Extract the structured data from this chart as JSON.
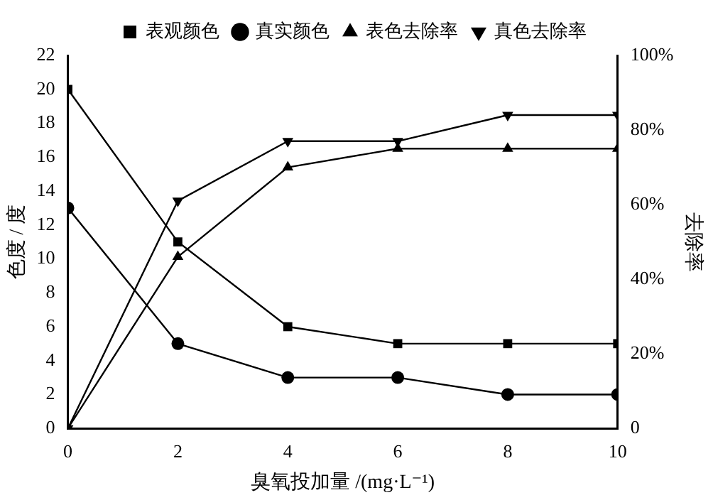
{
  "chart_data": {
    "type": "line",
    "xlabel": "臭氧投加量 /(mg·L⁻¹)",
    "ylabel": "色度 / 度",
    "y2label": "去除率",
    "x": [
      0,
      2,
      4,
      6,
      8,
      10
    ],
    "series": [
      {
        "name": "表观颜色",
        "color": "#000000",
        "marker": "square",
        "values": [
          20,
          11,
          6,
          5,
          5,
          5
        ]
      },
      {
        "name": "真实颜色",
        "color": "#000000",
        "marker": "circle",
        "values": [
          13,
          5,
          3,
          3,
          2,
          2
        ]
      },
      {
        "name": "表色去除率",
        "color": "#000000",
        "marker": "triangle",
        "axis": "y2",
        "values": [
          0,
          46,
          70,
          75,
          75,
          75
        ]
      },
      {
        "name": "真色去除率",
        "color": "#000000",
        "marker": "triangle-down",
        "axis": "y2",
        "values": [
          0,
          61,
          77,
          77,
          84,
          84
        ]
      }
    ],
    "xlim": [
      0,
      10
    ],
    "xticks": [
      0,
      2,
      4,
      6,
      8,
      10
    ],
    "ylim": [
      0,
      22
    ],
    "yticks": [
      0,
      2,
      4,
      6,
      8,
      10,
      12,
      14,
      16,
      18,
      20,
      22
    ],
    "y2lim": [
      0,
      100
    ],
    "y2ticks": [
      {
        "value": 0,
        "label": "0"
      },
      {
        "value": 20,
        "label": "20%"
      },
      {
        "value": 40,
        "label": "40%"
      },
      {
        "value": 60,
        "label": "60%"
      },
      {
        "value": 80,
        "label": "80%"
      },
      {
        "value": 100,
        "label": "100%"
      }
    ],
    "grid": false,
    "legend": "top",
    "line_style": "solid"
  }
}
